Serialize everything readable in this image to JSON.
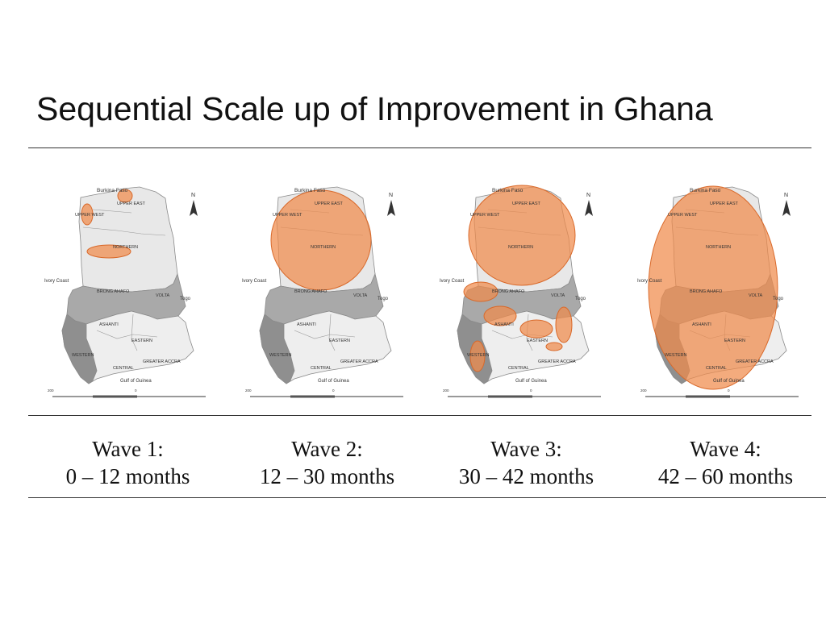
{
  "title": "Sequential Scale up of Improvement in Ghana",
  "map_labels": {
    "burkina_faso": "Burkina Faso",
    "upper_east": "UPPER EAST",
    "upper_west": "UPPER WEST",
    "northern": "NORTHERN",
    "ivory_coast": "Ivory Coast",
    "brong_ahafo": "BRONG AHAFO",
    "volta": "VOLTA",
    "togo": "Togo",
    "ashanti": "ASHANTI",
    "eastern": "EASTERN",
    "western": "WESTERN",
    "central": "CENTRAL",
    "greater_accra": "GREATER ACCRA",
    "gulf_of_guinea": "Gulf of Guinea",
    "north": "N",
    "scale_left": "200",
    "scale_zero": "0"
  },
  "highlight_color": "#f08a4b",
  "waves": [
    {
      "name": "Wave 1:",
      "period": "0 – 12 months"
    },
    {
      "name": "Wave 2:",
      "period": "12 – 30 months"
    },
    {
      "name": "Wave 3:",
      "period": "30 – 42 months"
    },
    {
      "name": "Wave 4:",
      "period": "42 – 60 months"
    }
  ]
}
